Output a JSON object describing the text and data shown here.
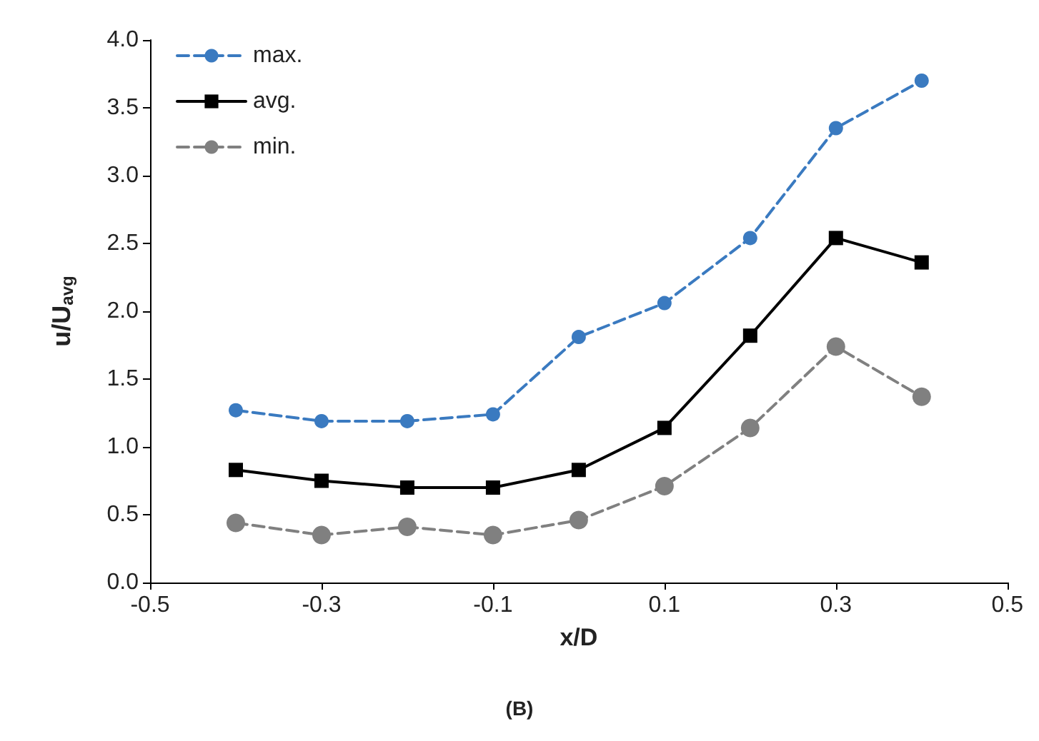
{
  "chart_data": {
    "type": "line",
    "xlabel": "x/D",
    "ylabel": "u/U$_{avg}$",
    "annotations": [
      "(B)"
    ],
    "x": [
      -0.4,
      -0.3,
      -0.2,
      -0.1,
      0,
      0.1,
      0.2,
      0.3,
      0.4
    ],
    "series": [
      {
        "name": "max.",
        "color": "#3a7ac0",
        "marker": "circle",
        "line_style": "dashed",
        "values": [
          1.27,
          1.19,
          1.19,
          1.24,
          1.81,
          2.06,
          2.54,
          3.35,
          3.7
        ]
      },
      {
        "name": "avg.",
        "color": "#000000",
        "marker": "square",
        "line_style": "solid",
        "values": [
          0.83,
          0.75,
          0.7,
          0.7,
          0.83,
          1.14,
          1.82,
          2.54,
          2.36
        ]
      },
      {
        "name": "min.",
        "color": "#808080",
        "marker": "circle",
        "line_style": "dashed",
        "values": [
          0.44,
          0.35,
          0.41,
          0.35,
          0.46,
          0.71,
          1.14,
          1.74,
          1.37
        ]
      }
    ],
    "xlim": [
      -0.5,
      0.5
    ],
    "xticks": [
      -0.5,
      -0.3,
      -0.1,
      0.1,
      0.3,
      0.5
    ],
    "ylim": [
      0,
      4
    ],
    "yticks": [
      {
        "value": 0,
        "label": "0.0"
      },
      {
        "value": 0.5,
        "label": "0.5"
      },
      {
        "value": 1,
        "label": "1.0"
      },
      {
        "value": 1.5,
        "label": "1.5"
      },
      {
        "value": 2,
        "label": "2.0"
      },
      {
        "value": 2.5,
        "label": "2.5"
      },
      {
        "value": 3,
        "label": "3.0"
      },
      {
        "value": 3.5,
        "label": "3.5"
      },
      {
        "value": 4,
        "label": "4.0"
      }
    ],
    "grid": false,
    "legend": "top left"
  }
}
